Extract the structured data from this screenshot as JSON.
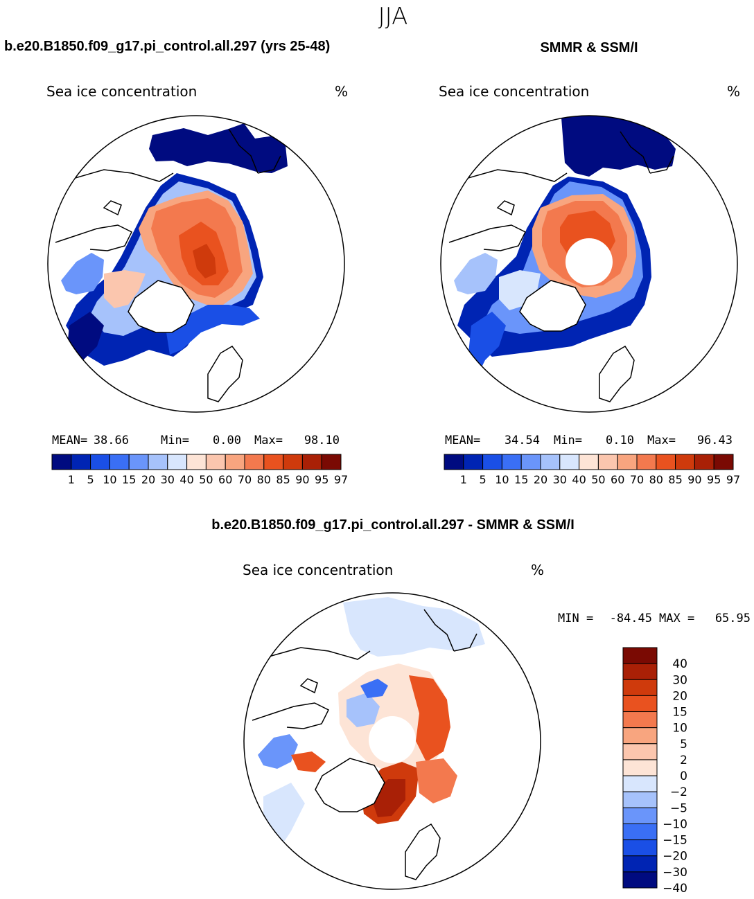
{
  "figure": {
    "season": "JJA",
    "bottom_title": "b.e20.B1850.f09_g17.pi_control.all.297 - SMMR & SSM/I"
  },
  "colors": {
    "conc_palette": [
      "#000b80",
      "#0024b3",
      "#1a4fe6",
      "#3a6ff5",
      "#6a95fa",
      "#a6c2fb",
      "#d8e6fd",
      "#fde4d6",
      "#fbc6ae",
      "#f8a57f",
      "#f3794e",
      "#e9521f",
      "#cf3a0c",
      "#a92006",
      "#7a0a03"
    ],
    "diff_palette": [
      "#000b80",
      "#0024b3",
      "#1a4fe6",
      "#3a6ff5",
      "#6a95fa",
      "#a6c2fb",
      "#d8e6fd",
      "#fde4d6",
      "#fbc6ae",
      "#f8a57f",
      "#f3794e",
      "#e9521f",
      "#cf3a0c",
      "#a92006",
      "#7a0a03"
    ],
    "land_line": "#000000"
  },
  "chart_data": [
    {
      "type": "heatmap",
      "panel": "model",
      "header": "b.e20.B1850.f09_g17.pi_control.all.297 (yrs 25-48)",
      "variable": "Sea ice concentration",
      "units": "%",
      "stats": {
        "mean_label": "MEAN=",
        "mean": "38.66",
        "min_label": "Min=",
        "min": "0.00",
        "max_label": "Max=",
        "max": "98.10"
      },
      "levels": [
        "1",
        "5",
        "10",
        "15",
        "20",
        "30",
        "40",
        "50",
        "60",
        "70",
        "80",
        "85",
        "90",
        "95",
        "97"
      ]
    },
    {
      "type": "heatmap",
      "panel": "observed",
      "header": "SMMR & SSM/I",
      "variable": "Sea ice concentration",
      "units": "%",
      "stats": {
        "mean_label": "MEAN=",
        "mean": "34.54",
        "min_label": "Min=",
        "min": "0.10",
        "max_label": "Max=",
        "max": "96.43"
      },
      "levels": [
        "1",
        "5",
        "10",
        "15",
        "20",
        "30",
        "40",
        "50",
        "60",
        "70",
        "80",
        "85",
        "90",
        "95",
        "97"
      ]
    },
    {
      "type": "heatmap",
      "panel": "difference",
      "variable": "Sea ice concentration",
      "units": "%",
      "stats": {
        "min_label": "MIN =",
        "min": "-84.45",
        "max_label": "MAX =",
        "max": "65.95"
      },
      "levels": [
        "40",
        "30",
        "20",
        "15",
        "10",
        "5",
        "2",
        "0",
        "-2",
        "-5",
        "-10",
        "-15",
        "-20",
        "-30",
        "-40"
      ]
    }
  ]
}
